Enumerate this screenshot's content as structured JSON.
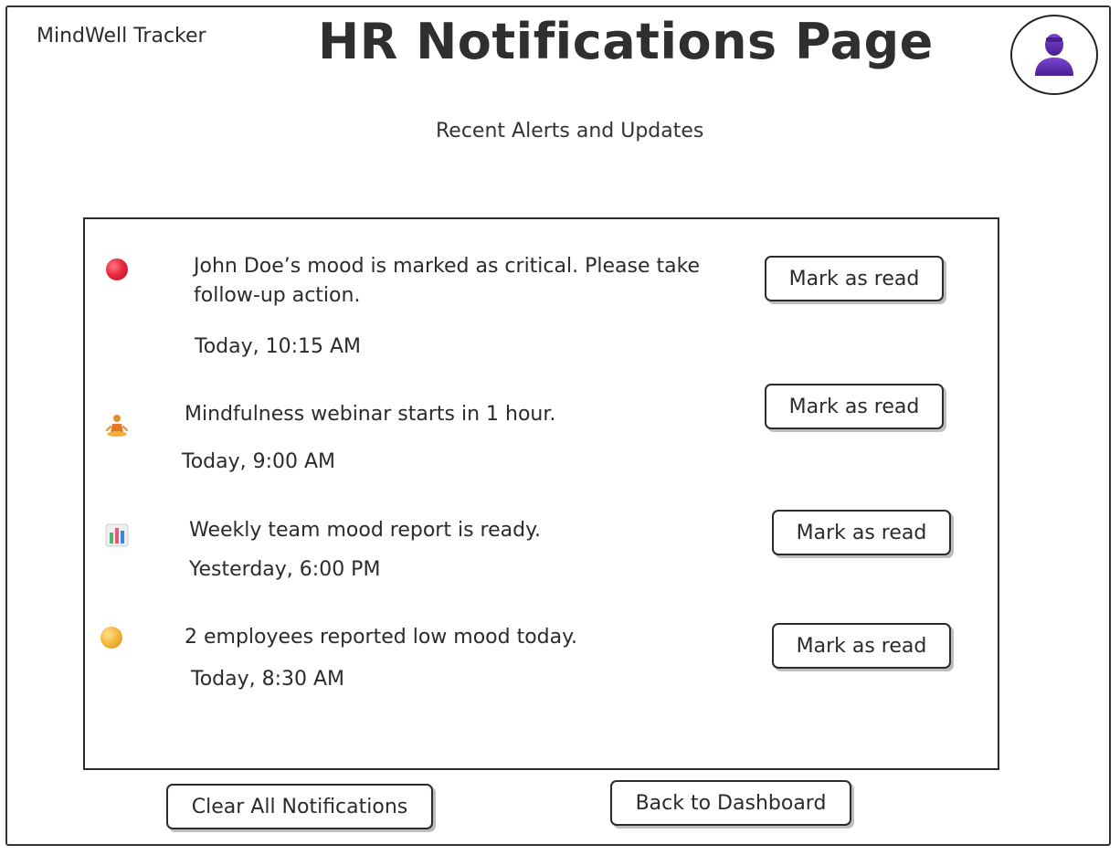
{
  "header": {
    "app_name": "MindWell Tracker",
    "title": "HR Notifications Page",
    "subtitle": "Recent Alerts and Updates",
    "avatar_icon": "user-avatar-icon"
  },
  "notifications": [
    {
      "icon": "red-circle-icon",
      "message": "John Doe’s mood is marked as critical. Please take follow-up action.",
      "time": "Today, 10:15 AM",
      "action_label": "Mark as read"
    },
    {
      "icon": "meditation-icon",
      "message": "Mindfulness webinar starts in 1 hour.",
      "time": "Today, 9:00 AM",
      "action_label": "Mark as read"
    },
    {
      "icon": "bar-chart-icon",
      "message": "Weekly team mood report is ready.",
      "time": "Yesterday, 6:00 PM",
      "action_label": "Mark as read"
    },
    {
      "icon": "yellow-circle-icon",
      "message": "2 employees reported low mood today.",
      "time": "Today, 8:30 AM",
      "action_label": "Mark as read"
    }
  ],
  "footer": {
    "clear_label": "Clear All Notifications",
    "back_label": "Back to Dashboard"
  },
  "colors": {
    "critical": "#e8283e",
    "warning": "#f4b53c",
    "avatar": "#5b2aa8"
  }
}
